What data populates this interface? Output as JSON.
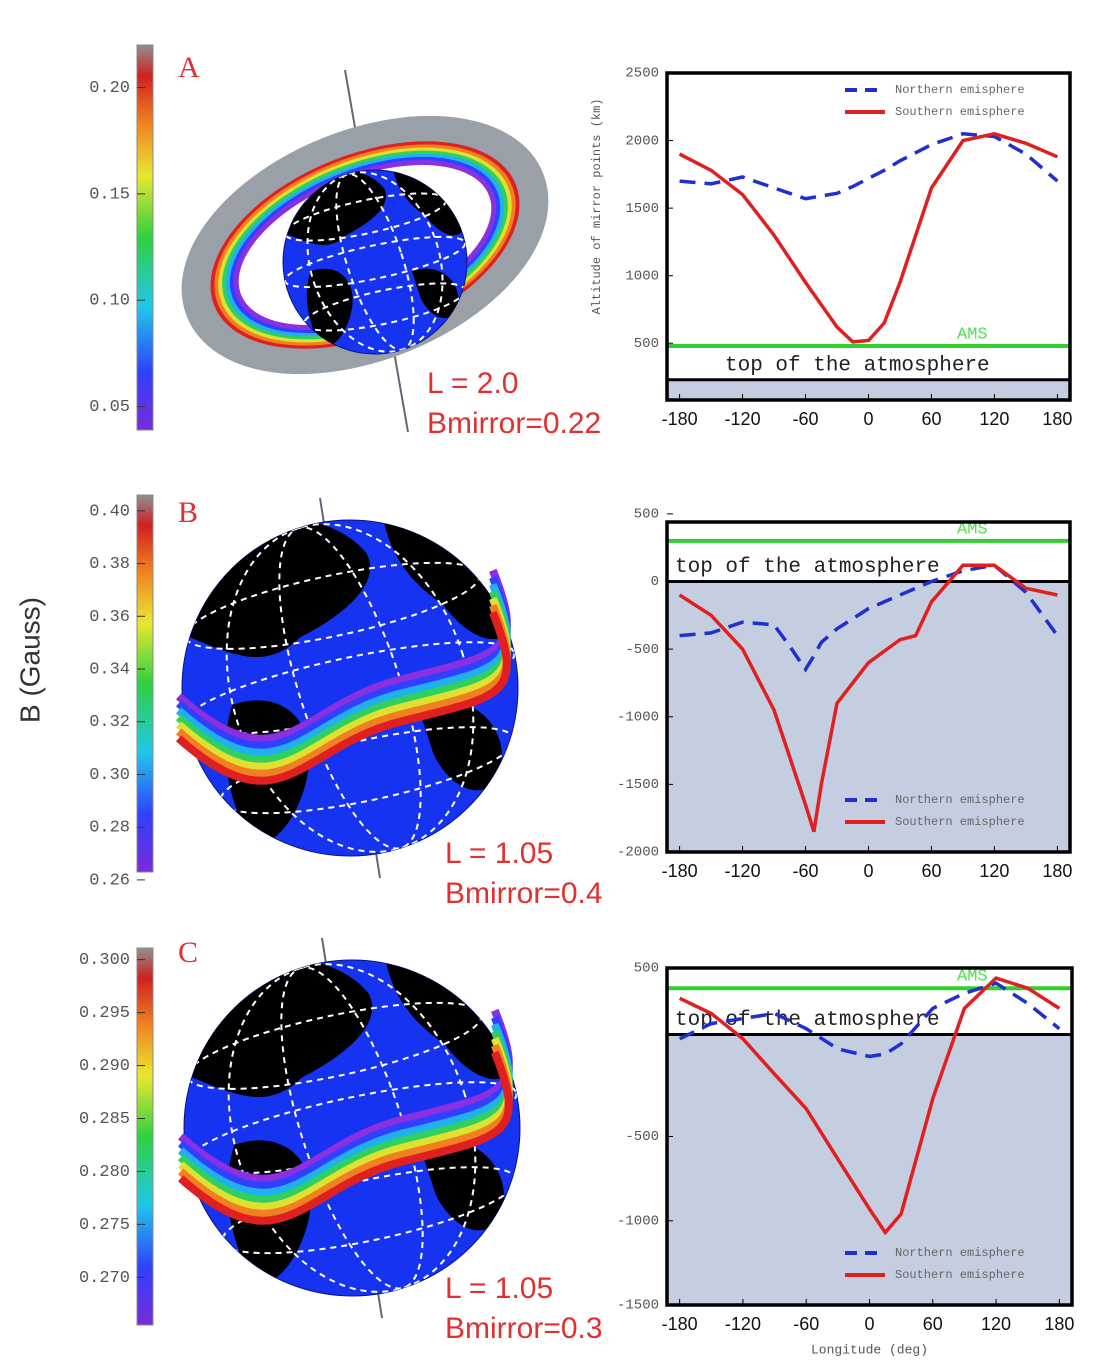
{
  "panels": [
    {
      "letter": "A",
      "L_text": "L = 2.0",
      "bmirror_text": "Bmirror=0.22",
      "colorbar": {
        "clim": [
          0.039,
          0.22
        ],
        "ticks": [
          {
            "value": 0.2,
            "label": "0.20"
          },
          0.15,
          {
            "value": 0.1,
            "label": "0.10"
          },
          0.05
        ]
      }
    },
    {
      "letter": "B",
      "L_text": "L = 1.05",
      "bmirror_text": "Bmirror=0.4",
      "colorbar": {
        "clim": [
          0.263,
          0.406
        ],
        "ticks": [
          {
            "value": 0.4,
            "label": "0.40"
          },
          0.38,
          0.36,
          0.34,
          0.32,
          {
            "value": 0.3,
            "label": "0.30"
          },
          0.28,
          0.26
        ]
      }
    },
    {
      "letter": "C",
      "L_text": "L = 1.05",
      "bmirror_text": "Bmirror=0.3",
      "colorbar": {
        "clim": [
          0.2655,
          0.3011
        ],
        "ticks": [
          {
            "value": 0.3,
            "label": "0.300"
          },
          0.295,
          {
            "value": 0.29,
            "label": "0.290"
          },
          0.285,
          {
            "value": 0.28,
            "label": "0.280"
          },
          0.275,
          {
            "value": 0.27,
            "label": "0.270"
          }
        ]
      }
    }
  ],
  "colorbar_label": "B   (Gauss)",
  "chart_data": [
    {
      "type": "line",
      "ylabel": "Altitude of mirror points (km)",
      "x": [
        -180,
        -150,
        -120,
        -90,
        -60,
        -30,
        -15,
        0,
        15,
        30,
        60,
        90,
        120,
        150,
        180
      ],
      "series": [
        {
          "name": "Northern emisphere",
          "color": "#1f2fd0",
          "dash": true,
          "values": [
            1700,
            1680,
            1730,
            1650,
            1570,
            1610,
            1660,
            1720,
            1780,
            1850,
            1970,
            2050,
            2030,
            1900,
            1700
          ]
        },
        {
          "name": "Southern emisphere",
          "color": "#e02020",
          "dash": false,
          "values": [
            1900,
            1780,
            1600,
            1300,
            950,
            620,
            510,
            520,
            650,
            950,
            1650,
            2000,
            2050,
            1980,
            1880
          ]
        }
      ],
      "xlim": [
        -192,
        192
      ],
      "ylim": [
        80,
        2500
      ],
      "xticks": [
        -180,
        -120,
        -60,
        0,
        60,
        120,
        180
      ],
      "yticks": [
        2500,
        2000,
        1500,
        1000,
        500
      ],
      "ams_label": "AMS",
      "ams_level": 480,
      "atmosphere_label": "top of the atmosphere",
      "atmosphere_level": 230,
      "legend": "upper right"
    },
    {
      "type": "line",
      "x": [
        -180,
        -150,
        -120,
        -90,
        -75,
        -60,
        -52,
        -45,
        -30,
        0,
        30,
        45,
        60,
        90,
        120,
        150,
        180
      ],
      "series": [
        {
          "name": "Northern emisphere",
          "color": "#1f2fd0",
          "dash": true,
          "values": [
            -400,
            -380,
            -300,
            -320,
            -480,
            -650,
            -550,
            -450,
            -350,
            -200,
            -100,
            -50,
            0,
            80,
            120,
            -80,
            -400
          ]
        },
        {
          "name": "Southern emisphere",
          "color": "#e02020",
          "dash": false,
          "values": [
            -100,
            -250,
            -500,
            -950,
            -1300,
            -1650,
            -1850,
            -1500,
            -900,
            -600,
            -430,
            -400,
            -150,
            120,
            120,
            -50,
            -100
          ]
        }
      ],
      "xlim": [
        -192,
        192
      ],
      "ylim": [
        -2000,
        440
      ],
      "xticks": [
        -180,
        -120,
        -60,
        0,
        60,
        120,
        180
      ],
      "yticks": [
        500,
        0,
        -500,
        -1000,
        -1500,
        -2000
      ],
      "ams_label": "AMS",
      "ams_level": 300,
      "atmosphere_label": "top of the atmosphere",
      "atmosphere_level": 0,
      "legend": "lower right"
    },
    {
      "type": "line",
      "xlabel": "Longitude (deg)",
      "x": [
        -180,
        -150,
        -120,
        -90,
        -60,
        -30,
        0,
        15,
        30,
        60,
        90,
        120,
        150,
        180
      ],
      "series": [
        {
          "name": "Northern emisphere",
          "color": "#1f2fd0",
          "dash": true,
          "values": [
            80,
            170,
            200,
            230,
            140,
            20,
            -25,
            -10,
            50,
            260,
            350,
            410,
            290,
            140
          ]
        },
        {
          "name": "Southern emisphere",
          "color": "#e02020",
          "dash": false,
          "values": [
            320,
            230,
            80,
            -130,
            -335,
            -635,
            -930,
            -1070,
            -960,
            -275,
            260,
            440,
            380,
            260
          ]
        }
      ],
      "xlim": [
        -192,
        192
      ],
      "ylim": [
        -1500,
        500
      ],
      "xticks": [
        -180,
        -120,
        -60,
        0,
        60,
        120,
        180
      ],
      "yticks": [
        500,
        -500,
        -1000,
        -1500
      ],
      "ams_label": "AMS",
      "ams_level": 380,
      "atmosphere_label": "top of the atmosphere",
      "atmosphere_level": 105,
      "legend": "lower right"
    }
  ]
}
